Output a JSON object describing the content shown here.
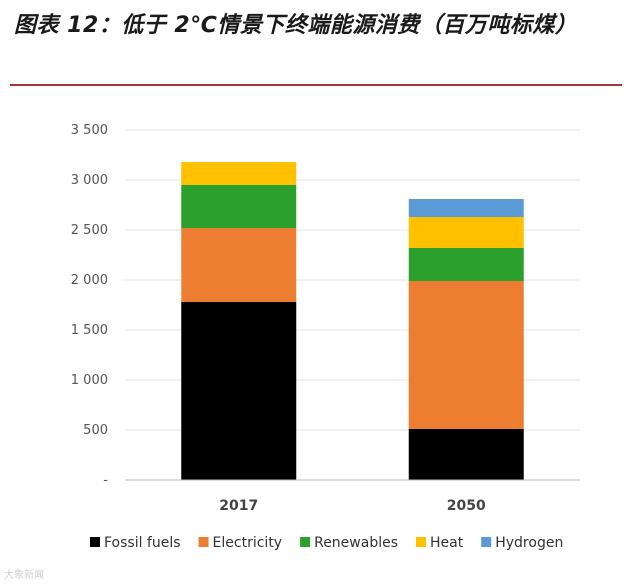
{
  "figure": {
    "title": "图表 12：低于 2℃情景下终端能源消费（百万吨标煤）",
    "watermark": "大象新闻"
  },
  "chart_data": {
    "type": "bar",
    "stacked": true,
    "title": "图表 12：低于 2℃情景下终端能源消费（百万吨标煤）",
    "xlabel": "",
    "ylabel": "",
    "ylim": [
      0,
      3500
    ],
    "yticks": [
      0,
      500,
      1000,
      1500,
      2000,
      2500,
      3000,
      3500
    ],
    "ytick_labels": [
      "-",
      "500",
      "1 000",
      "1 500",
      "2 000",
      "2 500",
      "3 000",
      "3 500"
    ],
    "grid": true,
    "legend": "bottom",
    "categories": [
      "2017",
      "2050"
    ],
    "series": [
      {
        "name": "Fossil fuels",
        "color": "#000000",
        "values": [
          1780,
          510
        ]
      },
      {
        "name": "Electricity",
        "color": "#ed7d31",
        "values": [
          740,
          1480
        ]
      },
      {
        "name": "Renewables",
        "color": "#2ca02c",
        "values": [
          430,
          330
        ]
      },
      {
        "name": "Heat",
        "color": "#ffc000",
        "values": [
          230,
          310
        ]
      },
      {
        "name": "Hydrogen",
        "color": "#5b9bd5",
        "values": [
          0,
          180
        ]
      }
    ]
  }
}
